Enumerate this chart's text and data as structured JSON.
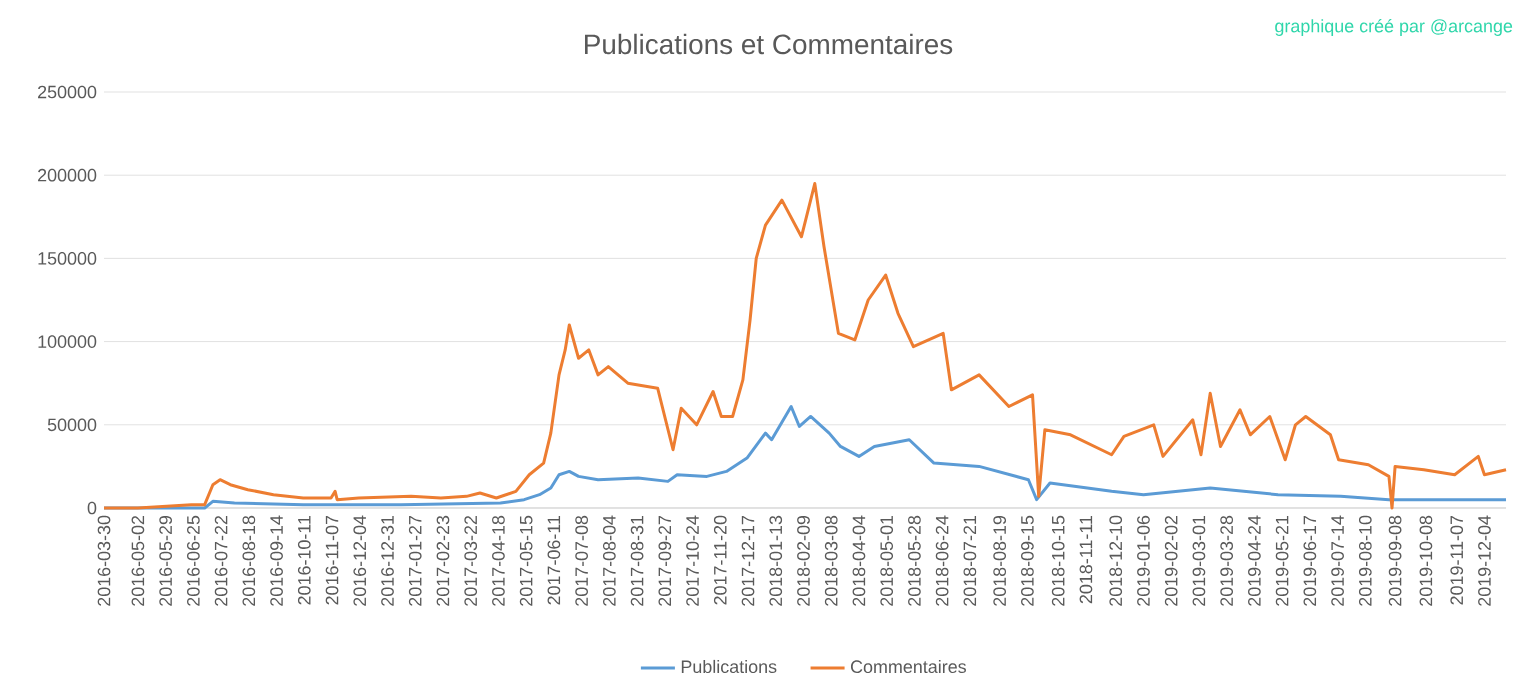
{
  "chart_data": {
    "type": "line",
    "title": "Publications et Commentaires",
    "annotations": [
      "graphique créé par @arcange"
    ],
    "xlim": [
      "2016-03-30",
      "2019-12-25"
    ],
    "xticks": [
      "2016-03-30",
      "2016-05-02",
      "2016-05-29",
      "2016-06-25",
      "2016-07-22",
      "2016-08-18",
      "2016-09-14",
      "2016-10-11",
      "2016-11-07",
      "2016-12-04",
      "2016-12-31",
      "2017-01-27",
      "2017-02-23",
      "2017-03-22",
      "2017-04-18",
      "2017-05-15",
      "2017-06-11",
      "2017-07-08",
      "2017-08-04",
      "2017-08-31",
      "2017-09-27",
      "2017-10-24",
      "2017-11-20",
      "2017-12-17",
      "2018-01-13",
      "2018-02-09",
      "2018-03-08",
      "2018-04-04",
      "2018-05-01",
      "2018-05-28",
      "2018-06-24",
      "2018-07-21",
      "2018-08-19",
      "2018-09-15",
      "2018-10-15",
      "2018-11-11",
      "2018-12-10",
      "2019-01-06",
      "2019-02-02",
      "2019-03-01",
      "2019-03-28",
      "2019-04-24",
      "2019-05-21",
      "2019-06-17",
      "2019-07-14",
      "2019-08-10",
      "2019-09-08",
      "2019-10-08",
      "2019-11-07",
      "2019-12-04"
    ],
    "ylim": [
      0,
      250000
    ],
    "yticks": [
      0,
      50000,
      100000,
      150000,
      200000,
      250000
    ],
    "grid": "y",
    "legend": "bottom",
    "series": [
      {
        "name": "Publications",
        "color": "#5b9bd5",
        "x": [
          "2016-03-30",
          "2016-07-06",
          "2016-07-14",
          "2016-08-04",
          "2016-10-10",
          "2017-01-13",
          "2017-04-20",
          "2017-05-13",
          "2017-05-28",
          "2017-06-08",
          "2017-06-16",
          "2017-06-26",
          "2017-07-05",
          "2017-07-24",
          "2017-09-01",
          "2017-09-30",
          "2017-10-09",
          "2017-11-07",
          "2017-11-26",
          "2017-12-16",
          "2018-01-03",
          "2018-01-09",
          "2018-01-28",
          "2018-02-05",
          "2018-02-16",
          "2018-03-06",
          "2018-03-17",
          "2018-04-04",
          "2018-04-19",
          "2018-05-23",
          "2018-06-16",
          "2018-07-30",
          "2018-09-16",
          "2018-09-24",
          "2018-10-07",
          "2018-12-06",
          "2019-01-06",
          "2019-03-12",
          "2019-05-17",
          "2019-07-17",
          "2019-09-02",
          "2019-12-25"
        ],
        "values": [
          0,
          0,
          4000,
          3000,
          2000,
          2000,
          3000,
          5000,
          8000,
          12000,
          20000,
          22000,
          19000,
          17000,
          18000,
          16000,
          20000,
          19000,
          22000,
          30000,
          45000,
          41000,
          61000,
          49000,
          55000,
          45000,
          37000,
          31000,
          37000,
          41000,
          27000,
          25000,
          17000,
          5000,
          15000,
          10000,
          8000,
          12000,
          8000,
          7000,
          5000,
          5000
        ]
      },
      {
        "name": "Commentaires",
        "color": "#ed7d31",
        "x": [
          "2016-03-30",
          "2016-05-02",
          "2016-06-23",
          "2016-07-06",
          "2016-07-14",
          "2016-07-21",
          "2016-07-31",
          "2016-08-17",
          "2016-09-11",
          "2016-10-10",
          "2016-11-06",
          "2016-11-10",
          "2016-11-12",
          "2016-12-03",
          "2017-01-23",
          "2017-02-21",
          "2017-03-18",
          "2017-03-31",
          "2017-04-16",
          "2017-05-05",
          "2017-05-18",
          "2017-06-01",
          "2017-06-08",
          "2017-06-16",
          "2017-06-22",
          "2017-06-26",
          "2017-07-05",
          "2017-07-15",
          "2017-07-24",
          "2017-08-03",
          "2017-08-22",
          "2017-09-20",
          "2017-10-05",
          "2017-10-13",
          "2017-10-28",
          "2017-11-13",
          "2017-11-21",
          "2017-12-02",
          "2017-12-12",
          "2017-12-19",
          "2017-12-25",
          "2018-01-03",
          "2018-01-19",
          "2018-02-07",
          "2018-02-20",
          "2018-03-01",
          "2018-03-15",
          "2018-03-31",
          "2018-04-13",
          "2018-04-30",
          "2018-05-12",
          "2018-05-27",
          "2018-06-25",
          "2018-07-03",
          "2018-07-30",
          "2018-08-28",
          "2018-09-20",
          "2018-09-26",
          "2018-10-02",
          "2018-10-27",
          "2018-12-06",
          "2018-12-18",
          "2019-01-16",
          "2019-01-25",
          "2019-02-23",
          "2019-03-03",
          "2019-03-12",
          "2019-03-22",
          "2019-04-10",
          "2019-04-20",
          "2019-05-09",
          "2019-05-24",
          "2019-06-03",
          "2019-06-13",
          "2019-07-07",
          "2019-07-15",
          "2019-08-13",
          "2019-09-02",
          "2019-09-05",
          "2019-09-08",
          "2019-10-06",
          "2019-11-05",
          "2019-11-28",
          "2019-12-04",
          "2019-12-25"
        ],
        "values": [
          0,
          0,
          2000,
          2000,
          14000,
          17000,
          14000,
          11000,
          8000,
          6000,
          6000,
          10000,
          5000,
          6000,
          7000,
          6000,
          7000,
          9000,
          6000,
          10000,
          20000,
          27000,
          45000,
          80000,
          95000,
          110000,
          90000,
          95000,
          80000,
          85000,
          75000,
          72000,
          35000,
          60000,
          50000,
          70000,
          55000,
          55000,
          77000,
          113000,
          150000,
          170000,
          185000,
          163000,
          195000,
          157000,
          105000,
          101000,
          125000,
          140000,
          117000,
          97000,
          105000,
          71000,
          80000,
          61000,
          68000,
          7000,
          47000,
          44000,
          32000,
          43000,
          50000,
          31000,
          53000,
          32000,
          69000,
          37000,
          59000,
          44000,
          55000,
          29000,
          50000,
          55000,
          44000,
          29000,
          26000,
          19000,
          0,
          25000,
          23000,
          20000,
          31000,
          20000,
          23000
        ]
      }
    ]
  }
}
